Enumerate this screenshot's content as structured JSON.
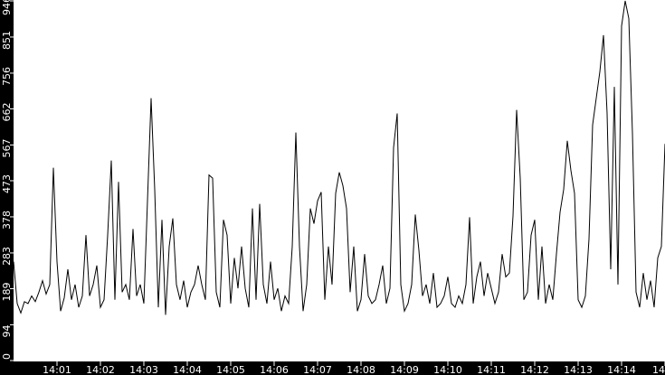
{
  "chart_data": {
    "type": "line",
    "title": "",
    "xlabel": "",
    "ylabel": "",
    "ylim": [
      0,
      946
    ],
    "xlim": [
      "14:00:00",
      "14:15:00"
    ],
    "grid": false,
    "colors": {
      "line": "#000000",
      "background": "#ffffff",
      "axis_bar": "#000000",
      "axis_text": "#ffffff"
    },
    "y_ticks": [
      "0",
      "94",
      "189",
      "283",
      "378",
      "473",
      "567",
      "662",
      "756",
      "851",
      "946"
    ],
    "x_ticks": [
      "14:01",
      "14:02",
      "14:03",
      "14:04",
      "14:05",
      "14:06",
      "14:07",
      "14:08",
      "14:09",
      "14:10",
      "14:11",
      "14:12",
      "14:13",
      "14:14",
      "14"
    ],
    "series": [
      {
        "x": [
          "14:00:00",
          "14:00:05",
          "14:00:10",
          "14:00:15",
          "14:00:20",
          "14:00:25",
          "14:00:30",
          "14:00:35",
          "14:00:40",
          "14:00:45",
          "14:00:50",
          "14:00:55",
          "14:01:00",
          "14:01:05",
          "14:01:10",
          "14:01:15",
          "14:01:20",
          "14:01:25",
          "14:01:30",
          "14:01:35",
          "14:01:40",
          "14:01:45",
          "14:01:50",
          "14:01:55",
          "14:02:00",
          "14:02:05",
          "14:02:10",
          "14:02:15",
          "14:02:20",
          "14:02:25",
          "14:02:30",
          "14:02:35",
          "14:02:40",
          "14:02:45",
          "14:02:50",
          "14:02:55",
          "14:03:00",
          "14:03:05",
          "14:03:10",
          "14:03:15",
          "14:03:20",
          "14:03:25",
          "14:03:30",
          "14:03:35",
          "14:03:40",
          "14:03:45",
          "14:03:50",
          "14:03:55",
          "14:04:00",
          "14:04:05",
          "14:04:10",
          "14:04:15",
          "14:04:20",
          "14:04:25",
          "14:04:30",
          "14:04:35",
          "14:04:40",
          "14:04:45",
          "14:04:50",
          "14:04:55",
          "14:05:00",
          "14:05:05",
          "14:05:10",
          "14:05:15",
          "14:05:20",
          "14:05:25",
          "14:05:30",
          "14:05:35",
          "14:05:40",
          "14:05:45",
          "14:05:50",
          "14:05:55",
          "14:06:00",
          "14:06:05",
          "14:06:10",
          "14:06:15",
          "14:06:20",
          "14:06:25",
          "14:06:30",
          "14:06:35",
          "14:06:40",
          "14:06:45",
          "14:06:50",
          "14:06:55",
          "14:07:00",
          "14:07:05",
          "14:07:10",
          "14:07:15",
          "14:07:20",
          "14:07:25",
          "14:07:30",
          "14:07:35",
          "14:07:40",
          "14:07:45",
          "14:07:50",
          "14:07:55",
          "14:08:00",
          "14:08:05",
          "14:08:10",
          "14:08:15",
          "14:08:20",
          "14:08:25",
          "14:08:30",
          "14:08:35",
          "14:08:40",
          "14:08:45",
          "14:08:50",
          "14:08:55",
          "14:09:00",
          "14:09:05",
          "14:09:10",
          "14:09:15",
          "14:09:20",
          "14:09:25",
          "14:09:30",
          "14:09:35",
          "14:09:40",
          "14:09:45",
          "14:09:50",
          "14:09:55",
          "14:10:00",
          "14:10:05",
          "14:10:10",
          "14:10:15",
          "14:10:20",
          "14:10:25",
          "14:10:30",
          "14:10:35",
          "14:10:40",
          "14:10:45",
          "14:10:50",
          "14:10:55",
          "14:11:00",
          "14:11:05",
          "14:11:10",
          "14:11:15",
          "14:11:20",
          "14:11:25",
          "14:11:30",
          "14:11:35",
          "14:11:40",
          "14:11:45",
          "14:11:50",
          "14:11:55",
          "14:12:00",
          "14:12:05",
          "14:12:10",
          "14:12:15",
          "14:12:20",
          "14:12:25",
          "14:12:30",
          "14:12:35",
          "14:12:40",
          "14:12:45",
          "14:12:50",
          "14:12:55",
          "14:13:00",
          "14:13:05",
          "14:13:10",
          "14:13:15",
          "14:13:20",
          "14:13:25",
          "14:13:30",
          "14:13:35",
          "14:13:40",
          "14:13:45",
          "14:13:50",
          "14:13:55",
          "14:14:00",
          "14:14:05",
          "14:14:10",
          "14:14:15",
          "14:14:20",
          "14:14:25",
          "14:14:30",
          "14:14:35",
          "14:14:40",
          "14:14:45",
          "14:14:50",
          "14:14:55",
          "14:15:00"
        ],
        "values": [
          260,
          150,
          125,
          155,
          150,
          170,
          155,
          180,
          210,
          175,
          200,
          507,
          260,
          130,
          165,
          240,
          160,
          200,
          140,
          170,
          330,
          170,
          200,
          250,
          140,
          160,
          330,
          526,
          160,
          470,
          180,
          200,
          160,
          346,
          170,
          200,
          150,
          420,
          690,
          450,
          140,
          370,
          120,
          300,
          374,
          200,
          160,
          210,
          140,
          180,
          200,
          250,
          200,
          160,
          488,
          480,
          180,
          140,
          370,
          330,
          150,
          270,
          190,
          300,
          190,
          140,
          400,
          160,
          412,
          200,
          150,
          260,
          160,
          190,
          130,
          170,
          150,
          300,
          600,
          300,
          130,
          200,
          400,
          360,
          420,
          443,
          160,
          300,
          200,
          440,
          495,
          460,
          400,
          180,
          300,
          130,
          160,
          280,
          170,
          150,
          160,
          200,
          250,
          150,
          190,
          560,
          650,
          200,
          130,
          150,
          200,
          384,
          290,
          170,
          200,
          150,
          230,
          140,
          150,
          170,
          220,
          150,
          140,
          170,
          150,
          200,
          377,
          150,
          220,
          260,
          170,
          230,
          190,
          150,
          180,
          280,
          220,
          230,
          380,
          659,
          480,
          160,
          180,
          330,
          370,
          160,
          300,
          150,
          200,
          160,
          280,
          390,
          450,
          578,
          500,
          440,
          160,
          140,
          170,
          320,
          620,
          690,
          760,
          856,
          650,
          240,
          720,
          200,
          880,
          946,
          900,
          600,
          180,
          140,
          230,
          160,
          210,
          140,
          270,
          300,
          570
        ]
      }
    ]
  }
}
